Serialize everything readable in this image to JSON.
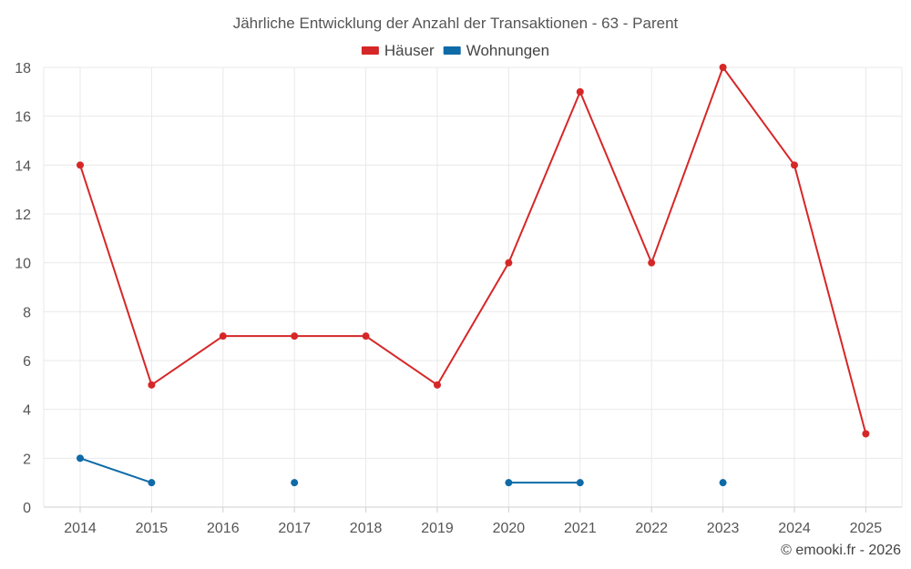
{
  "chart_data": {
    "type": "line",
    "title": "Jährliche Entwicklung der Anzahl der Transaktionen - 63 - Parent",
    "xlabel": "",
    "ylabel": "",
    "categories": [
      "2014",
      "2015",
      "2016",
      "2017",
      "2018",
      "2019",
      "2020",
      "2021",
      "2022",
      "2023",
      "2024",
      "2025"
    ],
    "ylim": [
      0,
      18
    ],
    "yticks": [
      0,
      2,
      4,
      6,
      8,
      10,
      12,
      14,
      16,
      18
    ],
    "grid": true,
    "legend_position": "top-center",
    "series": [
      {
        "name": "Häuser",
        "color": "#d62728",
        "values": [
          14,
          5,
          7,
          7,
          7,
          5,
          10,
          17,
          10,
          18,
          14,
          3
        ]
      },
      {
        "name": "Wohnungen",
        "color": "#0f6ba8",
        "values": [
          2,
          1,
          null,
          1,
          null,
          null,
          1,
          1,
          null,
          1,
          null,
          null
        ]
      }
    ]
  },
  "credit": "© emooki.fr - 2026"
}
